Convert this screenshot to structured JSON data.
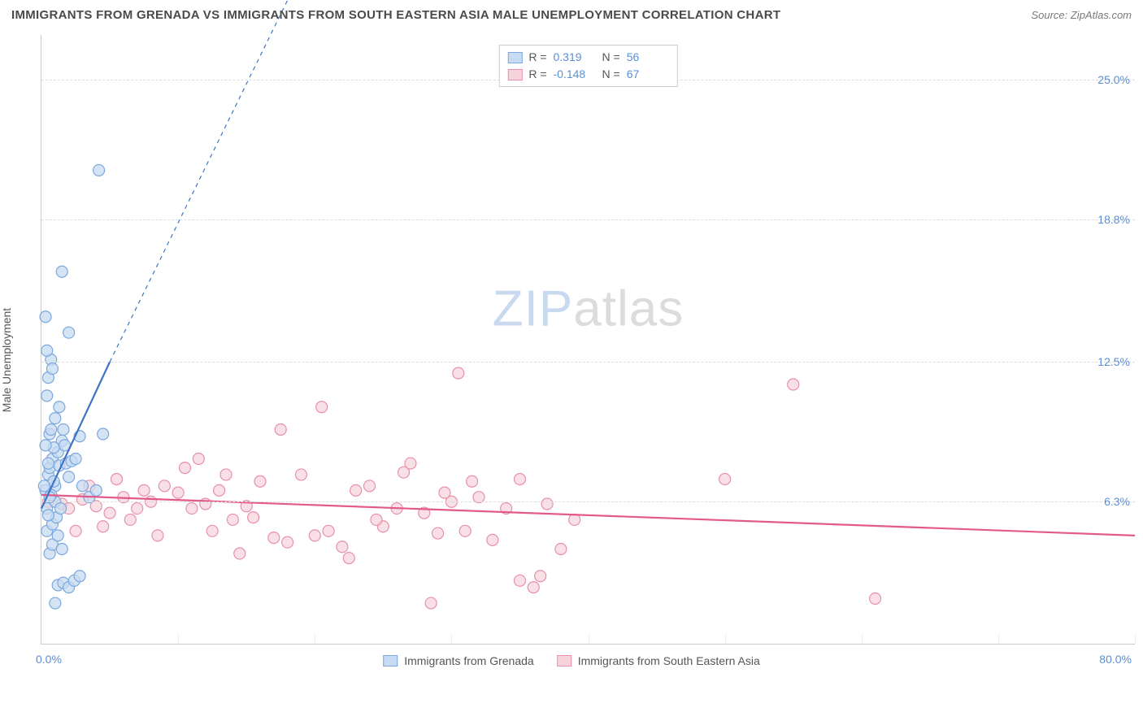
{
  "title": "IMMIGRANTS FROM GRENADA VS IMMIGRANTS FROM SOUTH EASTERN ASIA MALE UNEMPLOYMENT CORRELATION CHART",
  "source": "Source: ZipAtlas.com",
  "ylabel": "Male Unemployment",
  "watermark_a": "ZIP",
  "watermark_b": "atlas",
  "chart": {
    "type": "scatter",
    "background_color": "#ffffff",
    "grid_color": "#dddddd",
    "axis_color": "#cccccc",
    "xlim": [
      0,
      80
    ],
    "ylim": [
      0,
      27
    ],
    "x_origin_label": "0.0%",
    "x_end_label": "80.0%",
    "yticks": [
      {
        "v": 6.3,
        "label": "6.3%"
      },
      {
        "v": 12.5,
        "label": "12.5%"
      },
      {
        "v": 18.8,
        "label": "18.8%"
      },
      {
        "v": 25.0,
        "label": "25.0%"
      }
    ],
    "xgrid_positions": [
      10,
      20,
      30,
      40,
      50,
      60,
      70,
      80
    ],
    "series": [
      {
        "name": "Immigrants from Grenada",
        "color_fill": "#c7dbf2",
        "color_stroke": "#7ba8dd",
        "marker_radius": 7,
        "marker_opacity": 0.75,
        "R": "0.319",
        "N": "56",
        "trend": {
          "x1": 0,
          "y1": 6.0,
          "x2": 5,
          "y2": 12.5,
          "dash_x2": 20,
          "dash_y2": 31,
          "color": "#3f73c4",
          "width": 2.2
        },
        "points": [
          [
            0.3,
            6.8
          ],
          [
            0.5,
            7.5
          ],
          [
            0.4,
            6.0
          ],
          [
            0.6,
            7.8
          ],
          [
            0.8,
            8.2
          ],
          [
            1.0,
            7.0
          ],
          [
            1.2,
            8.5
          ],
          [
            1.5,
            9.0
          ],
          [
            1.0,
            6.3
          ],
          [
            0.7,
            6.6
          ],
          [
            0.9,
            7.2
          ],
          [
            1.3,
            7.9
          ],
          [
            1.8,
            8.0
          ],
          [
            2.0,
            7.4
          ],
          [
            2.2,
            8.1
          ],
          [
            0.4,
            5.0
          ],
          [
            0.8,
            5.3
          ],
          [
            1.1,
            5.6
          ],
          [
            1.4,
            6.0
          ],
          [
            0.5,
            5.7
          ],
          [
            0.6,
            6.5
          ],
          [
            0.9,
            8.7
          ],
          [
            1.7,
            8.8
          ],
          [
            2.5,
            8.2
          ],
          [
            0.3,
            8.8
          ],
          [
            0.6,
            9.3
          ],
          [
            1.0,
            10.0
          ],
          [
            1.3,
            10.5
          ],
          [
            0.4,
            11.0
          ],
          [
            0.5,
            11.8
          ],
          [
            0.7,
            12.6
          ],
          [
            0.4,
            13.0
          ],
          [
            0.8,
            12.2
          ],
          [
            1.6,
            9.5
          ],
          [
            2.8,
            9.2
          ],
          [
            4.5,
            9.3
          ],
          [
            0.3,
            14.5
          ],
          [
            1.5,
            16.5
          ],
          [
            2.0,
            13.8
          ],
          [
            4.2,
            21.0
          ],
          [
            1.2,
            2.6
          ],
          [
            1.6,
            2.7
          ],
          [
            2.0,
            2.5
          ],
          [
            2.4,
            2.8
          ],
          [
            2.8,
            3.0
          ],
          [
            1.0,
            1.8
          ],
          [
            0.6,
            4.0
          ],
          [
            0.8,
            4.4
          ],
          [
            1.2,
            4.8
          ],
          [
            1.5,
            4.2
          ],
          [
            3.0,
            7.0
          ],
          [
            3.5,
            6.5
          ],
          [
            4.0,
            6.8
          ],
          [
            0.2,
            7.0
          ],
          [
            0.5,
            8.0
          ],
          [
            0.7,
            9.5
          ]
        ]
      },
      {
        "name": "Immigrants from South Eastern Asia",
        "color_fill": "#f7d4dd",
        "color_stroke": "#e890ab",
        "marker_radius": 7,
        "marker_opacity": 0.75,
        "R": "-0.148",
        "N": "67",
        "trend": {
          "x1": 0,
          "y1": 6.6,
          "x2": 80,
          "y2": 4.8,
          "color": "#e35a8a",
          "width": 2.2
        },
        "points": [
          [
            0.5,
            6.3
          ],
          [
            1.5,
            6.2
          ],
          [
            2.0,
            6.0
          ],
          [
            3.0,
            6.4
          ],
          [
            4.0,
            6.1
          ],
          [
            5.0,
            5.8
          ],
          [
            6.0,
            6.5
          ],
          [
            7.0,
            6.0
          ],
          [
            8.0,
            6.3
          ],
          [
            9.0,
            7.0
          ],
          [
            10.0,
            6.7
          ],
          [
            11.0,
            6.0
          ],
          [
            12.0,
            6.2
          ],
          [
            13.0,
            6.8
          ],
          [
            14.0,
            5.5
          ],
          [
            15.0,
            6.1
          ],
          [
            16.0,
            7.2
          ],
          [
            17.0,
            4.7
          ],
          [
            18.0,
            4.5
          ],
          [
            19.0,
            7.5
          ],
          [
            20.0,
            4.8
          ],
          [
            21.0,
            5.0
          ],
          [
            22.0,
            4.3
          ],
          [
            23.0,
            6.8
          ],
          [
            24.0,
            7.0
          ],
          [
            25.0,
            5.2
          ],
          [
            26.0,
            6.0
          ],
          [
            27.0,
            8.0
          ],
          [
            28.0,
            5.8
          ],
          [
            29.0,
            4.9
          ],
          [
            30.0,
            6.3
          ],
          [
            31.0,
            5.0
          ],
          [
            32.0,
            6.5
          ],
          [
            33.0,
            4.6
          ],
          [
            34.0,
            6.0
          ],
          [
            35.0,
            7.3
          ],
          [
            17.5,
            9.5
          ],
          [
            20.5,
            10.5
          ],
          [
            30.5,
            12.0
          ],
          [
            36.0,
            2.5
          ],
          [
            28.5,
            1.8
          ],
          [
            37.0,
            6.2
          ],
          [
            38.0,
            4.2
          ],
          [
            39.0,
            5.5
          ],
          [
            55.0,
            11.5
          ],
          [
            50.0,
            7.3
          ],
          [
            61.0,
            2.0
          ],
          [
            35.0,
            2.8
          ],
          [
            36.5,
            3.0
          ],
          [
            2.5,
            5.0
          ],
          [
            4.5,
            5.2
          ],
          [
            6.5,
            5.5
          ],
          [
            8.5,
            4.8
          ],
          [
            10.5,
            7.8
          ],
          [
            12.5,
            5.0
          ],
          [
            3.5,
            7.0
          ],
          [
            5.5,
            7.3
          ],
          [
            7.5,
            6.8
          ],
          [
            11.5,
            8.2
          ],
          [
            13.5,
            7.5
          ],
          [
            15.5,
            5.6
          ],
          [
            24.5,
            5.5
          ],
          [
            26.5,
            7.6
          ],
          [
            29.5,
            6.7
          ],
          [
            31.5,
            7.2
          ],
          [
            14.5,
            4.0
          ],
          [
            22.5,
            3.8
          ]
        ]
      }
    ]
  },
  "legend_bottom": [
    {
      "label": "Immigrants from Grenada",
      "fill": "#c7dbf2",
      "stroke": "#7ba8dd"
    },
    {
      "label": "Immigrants from South Eastern Asia",
      "fill": "#f7d4dd",
      "stroke": "#e890ab"
    }
  ]
}
